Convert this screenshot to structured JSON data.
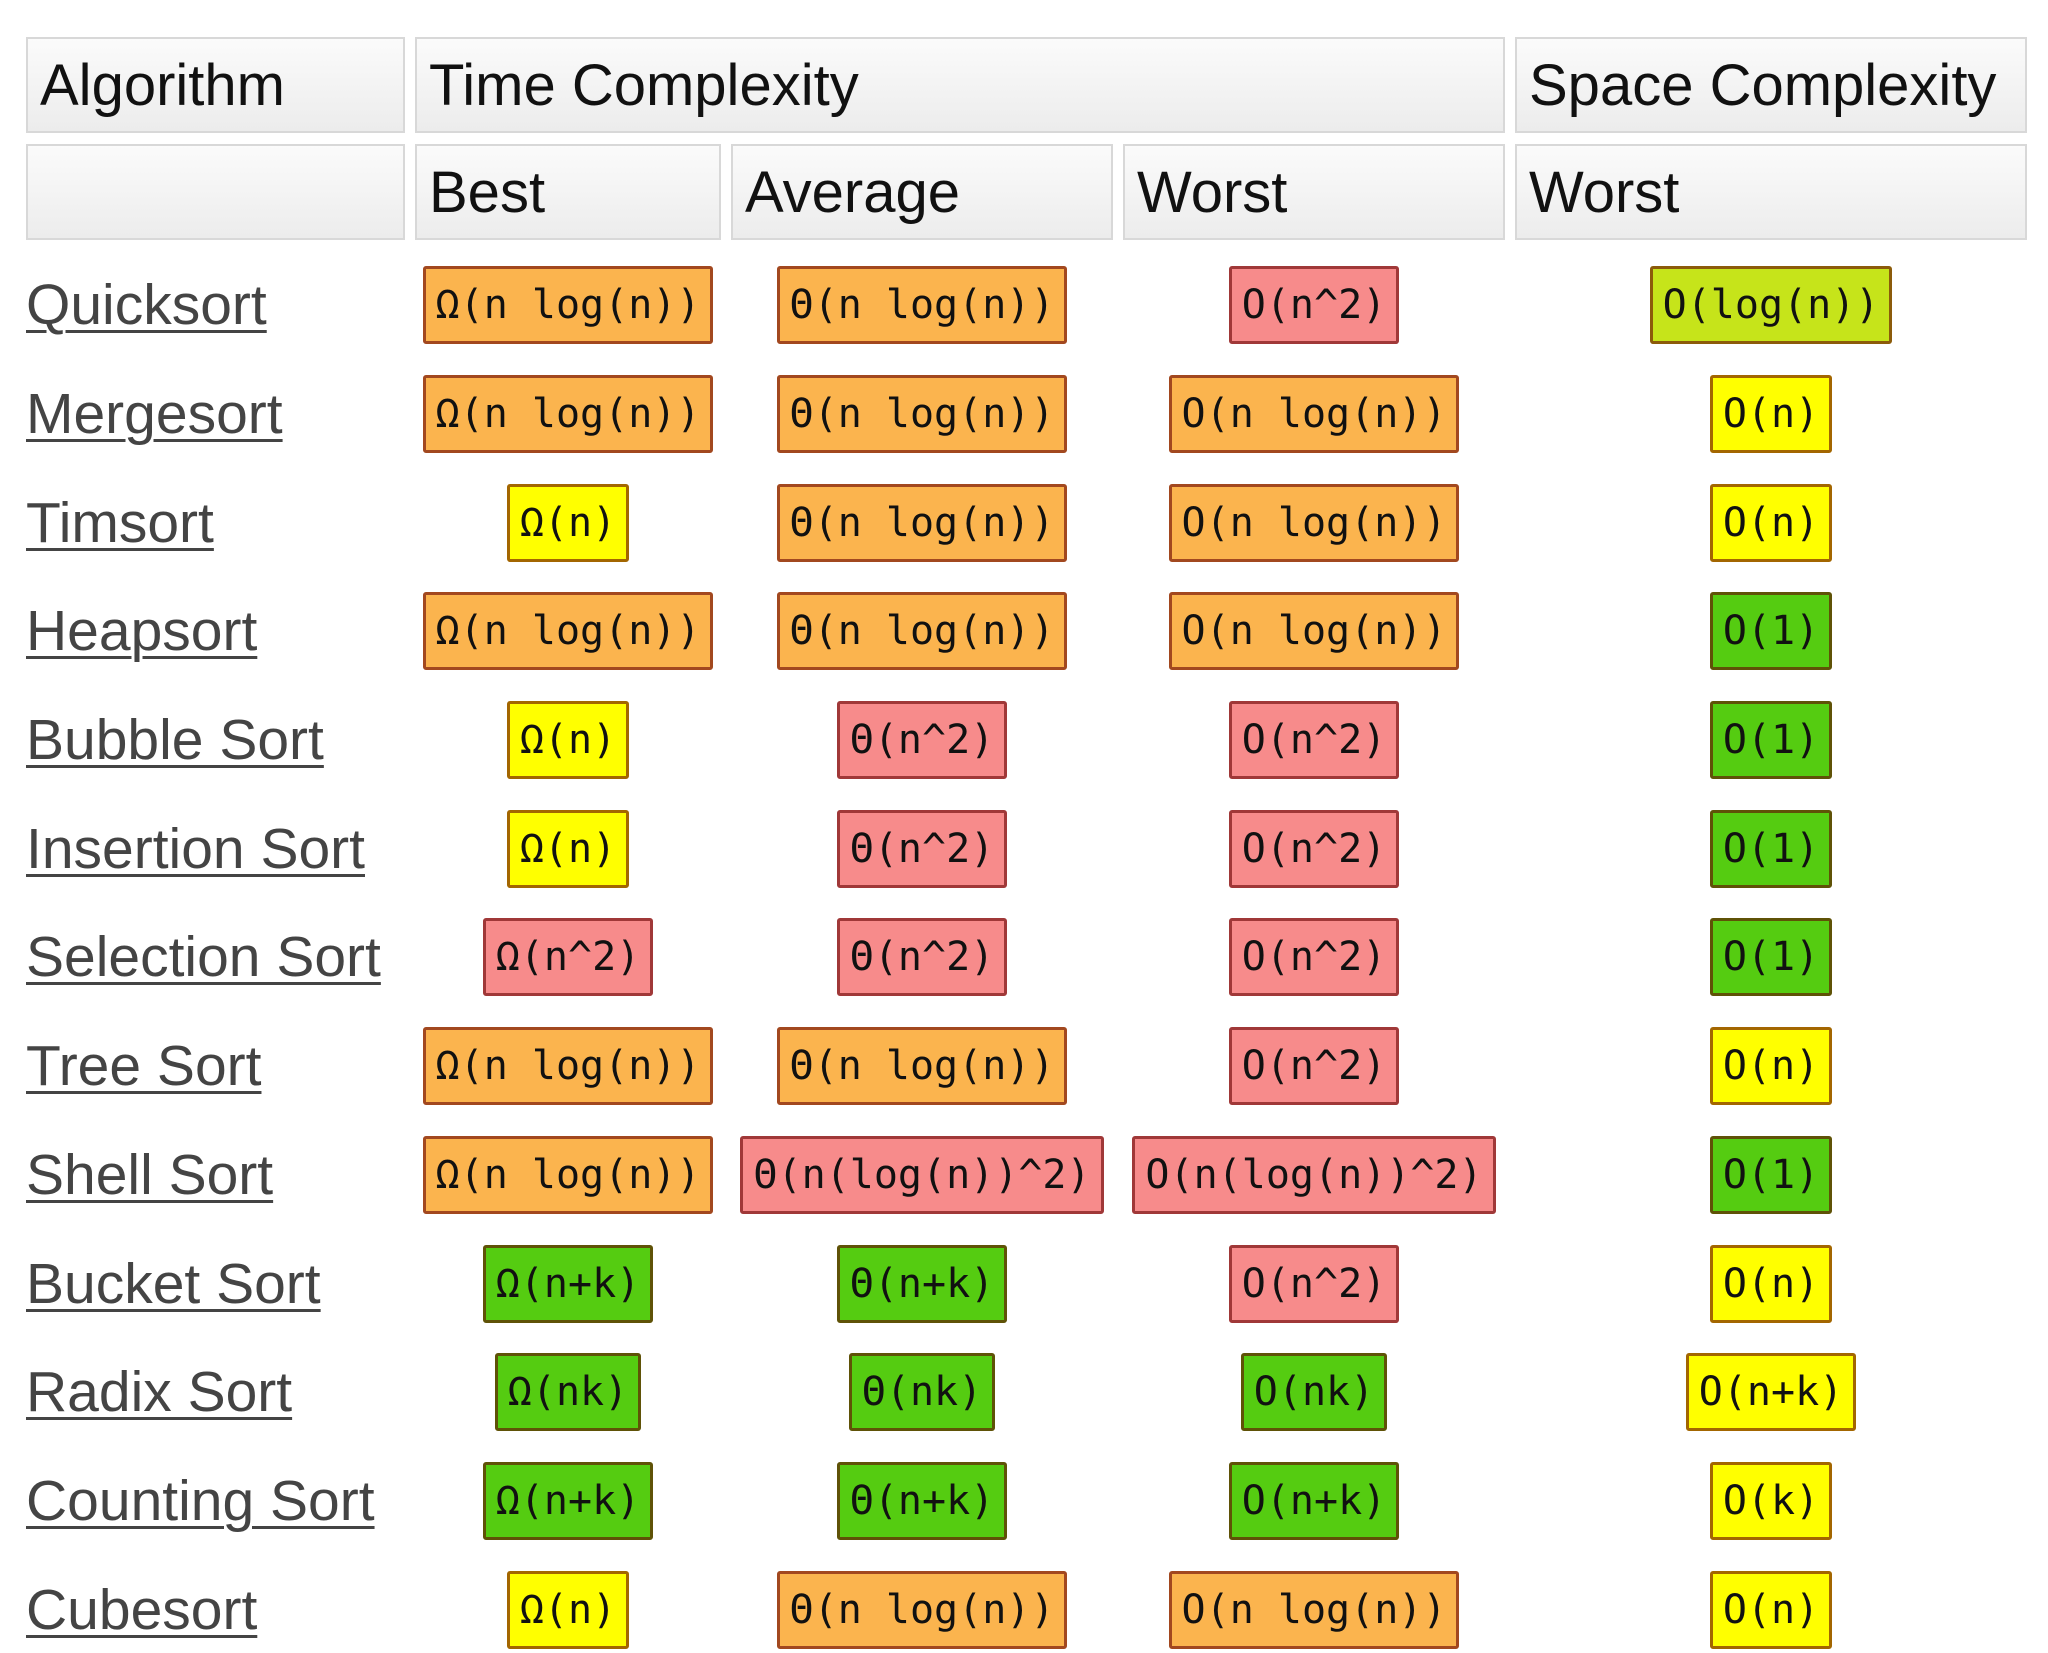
{
  "header": {
    "row1": [
      "Algorithm",
      "Time Complexity",
      "Space Complexity"
    ],
    "row2": [
      "Best",
      "Average",
      "Worst",
      "Worst"
    ]
  },
  "table": {
    "rows": [
      {
        "name": "Quicksort",
        "cells": [
          {
            "text": "Ω(n log(n))",
            "color": "#fbb44e"
          },
          {
            "text": "Θ(n log(n))",
            "color": "#fbb44e"
          },
          {
            "text": "O(n^2)",
            "color": "#f78b8b"
          },
          {
            "text": "O(log(n))",
            "color": "#c6e41a"
          }
        ]
      },
      {
        "name": "Mergesort",
        "cells": [
          {
            "text": "Ω(n log(n))",
            "color": "#fbb44e"
          },
          {
            "text": "Θ(n log(n))",
            "color": "#fbb44e"
          },
          {
            "text": "O(n log(n))",
            "color": "#fbb44e"
          },
          {
            "text": "O(n)",
            "color": "#ffff00"
          }
        ]
      },
      {
        "name": "Timsort",
        "cells": [
          {
            "text": "Ω(n)",
            "color": "#ffff00"
          },
          {
            "text": "Θ(n log(n))",
            "color": "#fbb44e"
          },
          {
            "text": "O(n log(n))",
            "color": "#fbb44e"
          },
          {
            "text": "O(n)",
            "color": "#ffff00"
          }
        ]
      },
      {
        "name": "Heapsort",
        "cells": [
          {
            "text": "Ω(n log(n))",
            "color": "#fbb44e"
          },
          {
            "text": "Θ(n log(n))",
            "color": "#fbb44e"
          },
          {
            "text": "O(n log(n))",
            "color": "#fbb44e"
          },
          {
            "text": "O(1)",
            "color": "#55cc11"
          }
        ]
      },
      {
        "name": "Bubble Sort",
        "cells": [
          {
            "text": "Ω(n)",
            "color": "#ffff00"
          },
          {
            "text": "Θ(n^2)",
            "color": "#f78b8b"
          },
          {
            "text": "O(n^2)",
            "color": "#f78b8b"
          },
          {
            "text": "O(1)",
            "color": "#55cc11"
          }
        ]
      },
      {
        "name": "Insertion Sort",
        "cells": [
          {
            "text": "Ω(n)",
            "color": "#ffff00"
          },
          {
            "text": "Θ(n^2)",
            "color": "#f78b8b"
          },
          {
            "text": "O(n^2)",
            "color": "#f78b8b"
          },
          {
            "text": "O(1)",
            "color": "#55cc11"
          }
        ]
      },
      {
        "name": "Selection Sort",
        "cells": [
          {
            "text": "Ω(n^2)",
            "color": "#f78b8b"
          },
          {
            "text": "Θ(n^2)",
            "color": "#f78b8b"
          },
          {
            "text": "O(n^2)",
            "color": "#f78b8b"
          },
          {
            "text": "O(1)",
            "color": "#55cc11"
          }
        ]
      },
      {
        "name": "Tree Sort",
        "cells": [
          {
            "text": "Ω(n log(n))",
            "color": "#fbb44e"
          },
          {
            "text": "Θ(n log(n))",
            "color": "#fbb44e"
          },
          {
            "text": "O(n^2)",
            "color": "#f78b8b"
          },
          {
            "text": "O(n)",
            "color": "#ffff00"
          }
        ]
      },
      {
        "name": "Shell Sort",
        "cells": [
          {
            "text": "Ω(n log(n))",
            "color": "#fbb44e"
          },
          {
            "text": "Θ(n(log(n))^2)",
            "color": "#f78b8b"
          },
          {
            "text": "O(n(log(n))^2)",
            "color": "#f78b8b"
          },
          {
            "text": "O(1)",
            "color": "#55cc11"
          }
        ]
      },
      {
        "name": "Bucket Sort",
        "cells": [
          {
            "text": "Ω(n+k)",
            "color": "#55cc11"
          },
          {
            "text": "Θ(n+k)",
            "color": "#55cc11"
          },
          {
            "text": "O(n^2)",
            "color": "#f78b8b"
          },
          {
            "text": "O(n)",
            "color": "#ffff00"
          }
        ]
      },
      {
        "name": "Radix Sort",
        "cells": [
          {
            "text": "Ω(nk)",
            "color": "#55cc11"
          },
          {
            "text": "Θ(nk)",
            "color": "#55cc11"
          },
          {
            "text": "O(nk)",
            "color": "#55cc11"
          },
          {
            "text": "O(n+k)",
            "color": "#ffff00"
          }
        ]
      },
      {
        "name": "Counting Sort",
        "cells": [
          {
            "text": "Ω(n+k)",
            "color": "#55cc11"
          },
          {
            "text": "Θ(n+k)",
            "color": "#55cc11"
          },
          {
            "text": "O(n+k)",
            "color": "#55cc11"
          },
          {
            "text": "O(k)",
            "color": "#ffff00"
          }
        ]
      },
      {
        "name": "Cubesort",
        "cells": [
          {
            "text": "Ω(n)",
            "color": "#ffff00"
          },
          {
            "text": "Θ(n log(n))",
            "color": "#fbb44e"
          },
          {
            "text": "O(n log(n))",
            "color": "#fbb44e"
          },
          {
            "text": "O(n)",
            "color": "#ffff00"
          }
        ]
      }
    ]
  }
}
